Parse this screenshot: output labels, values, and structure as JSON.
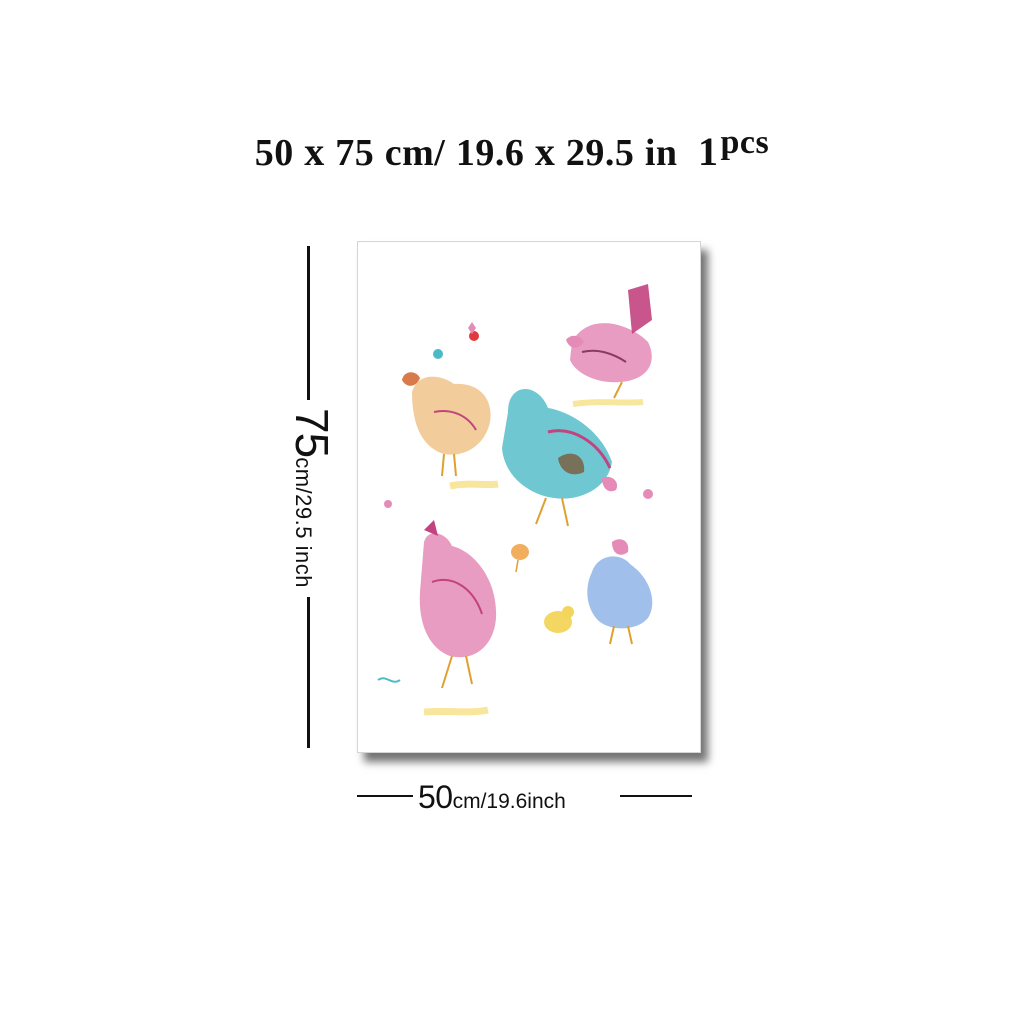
{
  "title": {
    "width_value": "50",
    "x1": "x",
    "height_value": "75",
    "metric_unit": "cm/",
    "width_inch": "19.6",
    "x2": "x",
    "height_inch": "29.5",
    "inch_unit": "in",
    "quantity": "1",
    "quantity_unit": "pcs"
  },
  "vertical_dimension": {
    "value": "75",
    "unit_text": "cm/29.5 inch"
  },
  "horizontal_dimension": {
    "value": "50",
    "unit_text": "cm/19.6inch"
  },
  "artwork": {
    "subject": "watercolor chickens illustration",
    "colors": {
      "pink": "#e58bb7",
      "magenta": "#c2437f",
      "teal": "#4bb9c7",
      "yellow": "#f3d55b",
      "orange": "#f0a64c",
      "blue": "#8fb4e8",
      "brown": "#7a5a3a",
      "red": "#e03a3e"
    }
  }
}
